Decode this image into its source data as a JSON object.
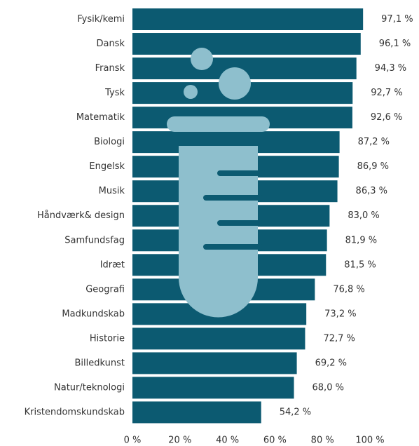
{
  "chart_data": {
    "type": "bar",
    "orientation": "horizontal",
    "categories": [
      "Fysik/kemi",
      "Dansk",
      "Fransk",
      "Tysk",
      "Matematik",
      "Biologi",
      "Engelsk",
      "Musik",
      "Håndværk& design",
      "Samfundsfag",
      "Idræt",
      "Geografi",
      "Madkundskab",
      "Historie",
      "Billedkunst",
      "Natur/teknologi",
      "Kristendomskundskab"
    ],
    "values": [
      97.1,
      96.1,
      94.3,
      92.7,
      92.6,
      87.2,
      86.9,
      86.3,
      83.0,
      81.9,
      81.5,
      76.8,
      73.2,
      72.7,
      69.2,
      68.0,
      54.2
    ],
    "value_labels": [
      "97,1 %",
      "96,1 %",
      "94,3 %",
      "92,7 %",
      "92,6 %",
      "87,2 %",
      "86,9 %",
      "86,3 %",
      "83,0 %",
      "81,9 %",
      "81,5 %",
      "76,8 %",
      "73,2 %",
      "72,7 %",
      "69,2 %",
      "68,0 %",
      "54,2 %"
    ],
    "color": "#0c5a71",
    "xlim": [
      0,
      100
    ],
    "xticks": [
      {
        "value": 0,
        "label": "0 %"
      },
      {
        "value": 20,
        "label": "20 %"
      },
      {
        "value": 40,
        "label": "40 %"
      },
      {
        "value": 60,
        "label": "60 %"
      },
      {
        "value": 80,
        "label": "80 %"
      },
      {
        "value": 100,
        "label": "100 %"
      }
    ]
  }
}
